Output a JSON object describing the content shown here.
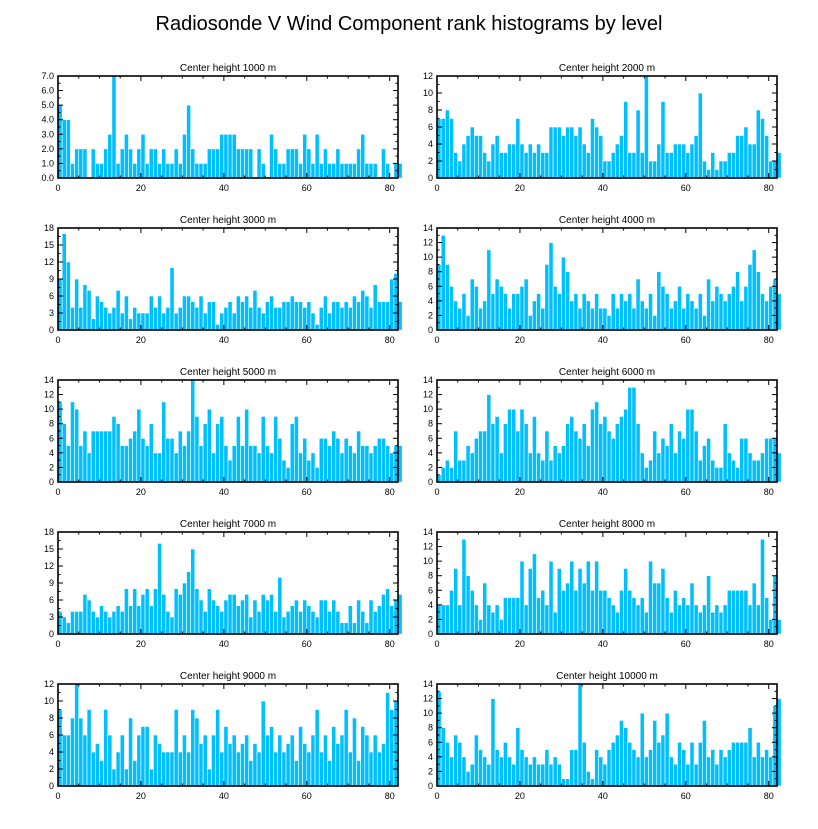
{
  "title": "Radiosonde V Wind Component rank histograms by level",
  "colors": {
    "bar": "#00bfff",
    "frame": "#000000",
    "background": "#ffffff"
  },
  "chart_data": [
    {
      "type": "bar",
      "title": "Center height 1000 m",
      "xlim": [
        0,
        82
      ],
      "ylim": [
        0,
        7
      ],
      "xticks": [
        "0",
        "20",
        "40",
        "60",
        "80"
      ],
      "yticks": [
        "0.0",
        "1.0",
        "2.0",
        "3.0",
        "4.0",
        "5.0",
        "6.0",
        "7.0"
      ],
      "values": [
        5,
        4,
        4,
        1,
        2,
        2,
        2,
        0,
        2,
        1,
        1,
        2,
        3,
        7,
        1,
        2,
        3,
        2,
        1,
        2,
        3,
        1,
        2,
        2,
        1,
        2,
        1,
        1,
        2,
        1,
        3,
        5,
        2,
        1,
        1,
        1,
        2,
        2,
        2,
        3,
        3,
        3,
        3,
        2,
        2,
        2,
        2,
        0,
        2,
        1,
        0,
        3,
        2,
        1,
        1,
        2,
        2,
        2,
        1,
        3,
        2,
        1,
        3,
        1,
        2,
        1,
        1,
        2,
        1,
        1,
        1,
        1,
        2,
        3,
        1,
        1,
        1,
        0,
        2,
        1,
        0,
        1,
        1
      ]
    },
    {
      "type": "bar",
      "title": "Center height 2000 m",
      "xlim": [
        0,
        82
      ],
      "ylim": [
        0,
        12
      ],
      "xticks": [
        "0",
        "20",
        "40",
        "60",
        "80"
      ],
      "yticks": [
        "0",
        "2",
        "4",
        "6",
        "8",
        "10",
        "12"
      ],
      "values": [
        7,
        7,
        8,
        7,
        3,
        2,
        4,
        5,
        6,
        5,
        5,
        3,
        2,
        4,
        5,
        3,
        3,
        4,
        4,
        7,
        4,
        3,
        4,
        3,
        4,
        3,
        3,
        6,
        6,
        6,
        5,
        6,
        6,
        5,
        6,
        4,
        3,
        7,
        6,
        5,
        2,
        2,
        3,
        4,
        5,
        9,
        3,
        3,
        8,
        3,
        12,
        2,
        2,
        4,
        9,
        3,
        3,
        4,
        4,
        4,
        3,
        4,
        5,
        10,
        2,
        1,
        3,
        1,
        2,
        2,
        3,
        3,
        5,
        5,
        6,
        4,
        4,
        8,
        7,
        5,
        2,
        2,
        3
      ]
    },
    {
      "type": "bar",
      "title": "Center height 3000 m",
      "xlim": [
        0,
        82
      ],
      "ylim": [
        0,
        18
      ],
      "xticks": [
        "0",
        "20",
        "40",
        "60",
        "80"
      ],
      "yticks": [
        "0",
        "3",
        "6",
        "9",
        "12",
        "15",
        "18"
      ],
      "values": [
        9,
        17,
        12,
        4,
        9,
        4,
        8,
        7,
        2,
        6,
        5,
        4,
        3,
        4,
        7,
        3,
        6,
        2,
        4,
        3,
        3,
        3,
        6,
        4,
        6,
        3,
        4,
        11,
        3,
        4,
        6,
        6,
        5,
        4,
        6,
        3,
        5,
        5,
        1,
        3,
        4,
        5,
        3,
        6,
        5,
        6,
        4,
        7,
        4,
        3,
        5,
        6,
        4,
        4,
        5,
        5,
        6,
        5,
        5,
        4,
        5,
        3,
        1,
        4,
        6,
        3,
        5,
        5,
        4,
        5,
        4,
        6,
        5,
        7,
        6,
        4,
        8,
        5,
        5,
        5,
        9,
        10,
        5
      ]
    },
    {
      "type": "bar",
      "title": "Center height 4000 m",
      "xlim": [
        0,
        82
      ],
      "ylim": [
        0,
        14
      ],
      "xticks": [
        "0",
        "20",
        "40",
        "60",
        "80"
      ],
      "yticks": [
        "0",
        "2",
        "4",
        "6",
        "8",
        "10",
        "12",
        "14"
      ],
      "values": [
        9,
        13,
        9,
        6,
        4,
        3,
        5,
        2,
        7,
        6,
        3,
        4,
        11,
        5,
        7,
        6,
        5,
        3,
        5,
        5,
        6,
        7,
        2,
        4,
        5,
        3,
        9,
        12,
        6,
        5,
        10,
        8,
        4,
        5,
        3,
        5,
        4,
        3,
        5,
        3,
        3,
        2,
        5,
        3,
        5,
        4,
        5,
        3,
        7,
        4,
        3,
        5,
        2,
        8,
        6,
        5,
        3,
        4,
        6,
        3,
        5,
        4,
        3,
        5,
        2,
        7,
        4,
        6,
        5,
        4,
        5,
        6,
        8,
        4,
        6,
        9,
        11,
        8,
        5,
        4,
        6,
        7,
        5
      ]
    },
    {
      "type": "bar",
      "title": "Center height 5000 m",
      "xlim": [
        0,
        82
      ],
      "ylim": [
        0,
        14
      ],
      "xticks": [
        "0",
        "20",
        "40",
        "60",
        "80"
      ],
      "yticks": [
        "0",
        "2",
        "4",
        "6",
        "8",
        "10",
        "12",
        "14"
      ],
      "values": [
        11,
        8,
        5,
        11,
        10,
        5,
        7,
        4,
        7,
        7,
        7,
        7,
        7,
        9,
        8,
        5,
        5,
        6,
        7,
        10,
        6,
        5,
        8,
        4,
        4,
        11,
        6,
        6,
        4,
        7,
        5,
        7,
        14,
        9,
        5,
        8,
        10,
        4,
        8,
        9,
        5,
        3,
        5,
        9,
        5,
        10,
        5,
        5,
        4,
        9,
        5,
        4,
        9,
        6,
        3,
        2,
        8,
        9,
        4,
        6,
        3,
        4,
        2,
        6,
        6,
        5,
        7,
        6,
        4,
        6,
        5,
        4,
        7,
        5,
        5,
        4,
        5,
        6,
        6,
        5,
        4,
        5,
        5
      ]
    },
    {
      "type": "bar",
      "title": "Center height 6000 m",
      "xlim": [
        0,
        82
      ],
      "ylim": [
        0,
        14
      ],
      "xticks": [
        "0",
        "20",
        "40",
        "60",
        "80"
      ],
      "yticks": [
        "0",
        "2",
        "4",
        "6",
        "8",
        "10",
        "12",
        "14"
      ],
      "values": [
        1,
        2,
        3,
        2,
        7,
        3,
        3,
        5,
        4,
        6,
        7,
        7,
        12,
        8,
        9,
        4,
        8,
        10,
        10,
        7,
        10,
        8,
        4,
        9,
        4,
        3,
        7,
        3,
        5,
        4,
        5,
        8,
        9,
        7,
        6,
        8,
        5,
        10,
        11,
        8,
        9,
        7,
        6,
        8,
        9,
        10,
        13,
        13,
        8,
        4,
        2,
        3,
        7,
        4,
        6,
        5,
        8,
        4,
        7,
        6,
        10,
        10,
        7,
        3,
        5,
        6,
        3,
        2,
        2,
        8,
        4,
        3,
        2,
        6,
        6,
        4,
        3,
        3,
        4,
        6,
        6,
        6,
        4
      ]
    },
    {
      "type": "bar",
      "title": "Center height 7000 m",
      "xlim": [
        0,
        82
      ],
      "ylim": [
        0,
        18
      ],
      "xticks": [
        "0",
        "20",
        "40",
        "60",
        "80"
      ],
      "yticks": [
        "0",
        "3",
        "6",
        "9",
        "12",
        "15",
        "18"
      ],
      "values": [
        4,
        3,
        2,
        4,
        4,
        4,
        7,
        6,
        4,
        3,
        5,
        4,
        3,
        4,
        5,
        4,
        8,
        5,
        8,
        5,
        7,
        8,
        5,
        8,
        16,
        7,
        4,
        3,
        8,
        7,
        9,
        11,
        15,
        8,
        6,
        4,
        8,
        6,
        5,
        4,
        6,
        7,
        7,
        5,
        6,
        7,
        3,
        6,
        4,
        7,
        6,
        7,
        4,
        10,
        3,
        4,
        5,
        6,
        4,
        6,
        5,
        4,
        3,
        6,
        6,
        4,
        6,
        4,
        2,
        2,
        5,
        2,
        6,
        4,
        2,
        6,
        4,
        5,
        7,
        8,
        5,
        6,
        7
      ]
    },
    {
      "type": "bar",
      "title": "Center height 8000 m",
      "xlim": [
        0,
        82
      ],
      "ylim": [
        0,
        14
      ],
      "xticks": [
        "0",
        "20",
        "40",
        "60",
        "80"
      ],
      "yticks": [
        "0",
        "2",
        "4",
        "6",
        "8",
        "10",
        "12",
        "14"
      ],
      "values": [
        4,
        4,
        4,
        6,
        9,
        4,
        13,
        8,
        6,
        4,
        2,
        7,
        4,
        3,
        4,
        2,
        5,
        5,
        5,
        5,
        10,
        4,
        9,
        11,
        5,
        6,
        4,
        10,
        3,
        9,
        6,
        7,
        10,
        6,
        9,
        7,
        10,
        6,
        10,
        6,
        6,
        5,
        4,
        3,
        6,
        9,
        6,
        5,
        4,
        5,
        3,
        10,
        7,
        7,
        9,
        5,
        3,
        6,
        4,
        5,
        4,
        7,
        4,
        3,
        4,
        8,
        3,
        4,
        3,
        4,
        6,
        6,
        6,
        6,
        6,
        4,
        7,
        4,
        13,
        5,
        2,
        8,
        2
      ]
    },
    {
      "type": "bar",
      "title": "Center height 9000 m",
      "xlim": [
        0,
        82
      ],
      "ylim": [
        0,
        12
      ],
      "xticks": [
        "0",
        "20",
        "40",
        "60",
        "80"
      ],
      "yticks": [
        "0",
        "2",
        "4",
        "6",
        "8",
        "10",
        "12"
      ],
      "values": [
        9,
        6,
        6,
        8,
        12,
        8,
        6,
        9,
        4,
        5,
        3,
        9,
        6,
        2,
        4,
        6,
        2,
        8,
        3,
        6,
        7,
        7,
        2,
        6,
        5,
        4,
        4,
        4,
        9,
        4,
        6,
        4,
        9,
        8,
        5,
        6,
        2,
        6,
        9,
        4,
        7,
        5,
        6,
        4,
        5,
        6,
        3,
        5,
        4,
        10,
        6,
        7,
        4,
        6,
        4,
        5,
        6,
        3,
        7,
        5,
        4,
        6,
        9,
        4,
        6,
        3,
        7,
        5,
        6,
        9,
        4,
        8,
        3,
        7,
        6,
        4,
        6,
        4,
        5,
        11,
        9,
        10
      ]
    },
    {
      "type": "bar",
      "title": "Center height 10000 m",
      "xlim": [
        0,
        82
      ],
      "ylim": [
        0,
        14
      ],
      "xticks": [
        "0",
        "20",
        "40",
        "60",
        "80"
      ],
      "yticks": [
        "0",
        "2",
        "4",
        "6",
        "8",
        "10",
        "12",
        "14"
      ],
      "values": [
        13,
        8,
        6,
        4,
        7,
        6,
        4,
        2,
        3,
        7,
        5,
        4,
        3,
        12,
        5,
        4,
        6,
        4,
        3,
        8,
        5,
        4,
        3,
        4,
        3,
        3,
        5,
        3,
        4,
        3,
        1,
        1,
        5,
        5,
        14,
        6,
        2,
        1,
        5,
        4,
        3,
        5,
        6,
        7,
        9,
        8,
        6,
        5,
        4,
        10,
        4,
        5,
        9,
        6,
        7,
        10,
        4,
        3,
        6,
        5,
        3,
        6,
        3,
        6,
        9,
        4,
        5,
        3,
        5,
        4,
        5,
        6,
        6,
        6,
        6,
        8,
        4,
        6,
        4,
        5,
        4,
        11,
        12
      ]
    }
  ]
}
